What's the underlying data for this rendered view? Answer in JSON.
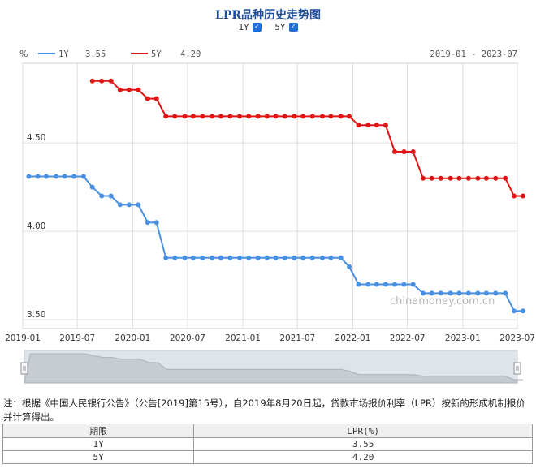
{
  "chart_data": {
    "type": "line",
    "title": "LPR品种历史走势图",
    "unit_label": "%",
    "date_range": "2019-01 - 2023-07",
    "watermark": "chinamoney.com.cn",
    "ylim": [
      3.45,
      4.95
    ],
    "y_ticks": [
      3.5,
      4.0,
      4.5
    ],
    "y_tick_labels": [
      "3.50",
      "4.00",
      "4.50"
    ],
    "x_ticks": [
      "2019-01",
      "2019-07",
      "2020-01",
      "2020-07",
      "2021-01",
      "2021-07",
      "2022-01",
      "2022-07",
      "2023-01",
      "2023-07"
    ],
    "grid": true,
    "legend_position": "top-left",
    "series": [
      {
        "name": "1Y",
        "latest": "3.55",
        "color": "#4a90e2",
        "points": [
          [
            "2019-01-21",
            4.31
          ],
          [
            "2019-02-20",
            4.31
          ],
          [
            "2019-03-20",
            4.31
          ],
          [
            "2019-04-22",
            4.31
          ],
          [
            "2019-05-20",
            4.31
          ],
          [
            "2019-06-20",
            4.31
          ],
          [
            "2019-07-22",
            4.31
          ],
          [
            "2019-08-20",
            4.25
          ],
          [
            "2019-09-20",
            4.2
          ],
          [
            "2019-10-21",
            4.2
          ],
          [
            "2019-11-20",
            4.15
          ],
          [
            "2019-12-20",
            4.15
          ],
          [
            "2020-01-20",
            4.15
          ],
          [
            "2020-02-20",
            4.05
          ],
          [
            "2020-03-20",
            4.05
          ],
          [
            "2020-04-20",
            3.85
          ],
          [
            "2020-05-20",
            3.85
          ],
          [
            "2020-06-22",
            3.85
          ],
          [
            "2020-07-20",
            3.85
          ],
          [
            "2020-08-20",
            3.85
          ],
          [
            "2020-09-21",
            3.85
          ],
          [
            "2020-10-20",
            3.85
          ],
          [
            "2020-11-20",
            3.85
          ],
          [
            "2020-12-21",
            3.85
          ],
          [
            "2021-01-20",
            3.85
          ],
          [
            "2021-02-20",
            3.85
          ],
          [
            "2021-03-22",
            3.85
          ],
          [
            "2021-04-20",
            3.85
          ],
          [
            "2021-05-20",
            3.85
          ],
          [
            "2021-06-21",
            3.85
          ],
          [
            "2021-07-20",
            3.85
          ],
          [
            "2021-08-20",
            3.85
          ],
          [
            "2021-09-22",
            3.85
          ],
          [
            "2021-10-20",
            3.85
          ],
          [
            "2021-11-22",
            3.85
          ],
          [
            "2021-12-20",
            3.8
          ],
          [
            "2022-01-20",
            3.7
          ],
          [
            "2022-02-21",
            3.7
          ],
          [
            "2022-03-21",
            3.7
          ],
          [
            "2022-04-20",
            3.7
          ],
          [
            "2022-05-20",
            3.7
          ],
          [
            "2022-06-20",
            3.7
          ],
          [
            "2022-07-20",
            3.7
          ],
          [
            "2022-08-22",
            3.65
          ],
          [
            "2022-09-20",
            3.65
          ],
          [
            "2022-10-20",
            3.65
          ],
          [
            "2022-11-21",
            3.65
          ],
          [
            "2022-12-20",
            3.65
          ],
          [
            "2023-01-20",
            3.65
          ],
          [
            "2023-02-20",
            3.65
          ],
          [
            "2023-03-20",
            3.65
          ],
          [
            "2023-04-20",
            3.65
          ],
          [
            "2023-05-22",
            3.65
          ],
          [
            "2023-06-20",
            3.55
          ],
          [
            "2023-07-20",
            3.55
          ]
        ]
      },
      {
        "name": "5Y",
        "latest": "4.20",
        "color": "#e01515",
        "points": [
          [
            "2019-08-20",
            4.85
          ],
          [
            "2019-09-20",
            4.85
          ],
          [
            "2019-10-21",
            4.85
          ],
          [
            "2019-11-20",
            4.8
          ],
          [
            "2019-12-20",
            4.8
          ],
          [
            "2020-01-20",
            4.8
          ],
          [
            "2020-02-20",
            4.75
          ],
          [
            "2020-03-20",
            4.75
          ],
          [
            "2020-04-20",
            4.65
          ],
          [
            "2020-05-20",
            4.65
          ],
          [
            "2020-06-22",
            4.65
          ],
          [
            "2020-07-20",
            4.65
          ],
          [
            "2020-08-20",
            4.65
          ],
          [
            "2020-09-21",
            4.65
          ],
          [
            "2020-10-20",
            4.65
          ],
          [
            "2020-11-20",
            4.65
          ],
          [
            "2020-12-21",
            4.65
          ],
          [
            "2021-01-20",
            4.65
          ],
          [
            "2021-02-20",
            4.65
          ],
          [
            "2021-03-22",
            4.65
          ],
          [
            "2021-04-20",
            4.65
          ],
          [
            "2021-05-20",
            4.65
          ],
          [
            "2021-06-21",
            4.65
          ],
          [
            "2021-07-20",
            4.65
          ],
          [
            "2021-08-20",
            4.65
          ],
          [
            "2021-09-22",
            4.65
          ],
          [
            "2021-10-20",
            4.65
          ],
          [
            "2021-11-22",
            4.65
          ],
          [
            "2021-12-20",
            4.65
          ],
          [
            "2022-01-20",
            4.6
          ],
          [
            "2022-02-21",
            4.6
          ],
          [
            "2022-03-21",
            4.6
          ],
          [
            "2022-04-20",
            4.6
          ],
          [
            "2022-05-20",
            4.45
          ],
          [
            "2022-06-20",
            4.45
          ],
          [
            "2022-07-20",
            4.45
          ],
          [
            "2022-08-22",
            4.3
          ],
          [
            "2022-09-20",
            4.3
          ],
          [
            "2022-10-20",
            4.3
          ],
          [
            "2022-11-21",
            4.3
          ],
          [
            "2022-12-20",
            4.3
          ],
          [
            "2023-01-20",
            4.3
          ],
          [
            "2023-02-20",
            4.3
          ],
          [
            "2023-03-20",
            4.3
          ],
          [
            "2023-04-20",
            4.3
          ],
          [
            "2023-05-22",
            4.3
          ],
          [
            "2023-06-20",
            4.2
          ],
          [
            "2023-07-20",
            4.2
          ]
        ]
      }
    ]
  },
  "toggles": [
    {
      "label": "1Y",
      "checked": true
    },
    {
      "label": "5Y",
      "checked": true
    }
  ],
  "note": "注：根据《中国人民银行公告》（公告[2019]第15号），自2019年8月20日起，贷款市场报价利率（LPR）按新的形成机制报价并计算得出。",
  "table": {
    "headers": [
      "期限",
      "LPR(%)"
    ],
    "rows": [
      [
        "1Y",
        "3.55"
      ],
      [
        "5Y",
        "4.20"
      ]
    ]
  }
}
